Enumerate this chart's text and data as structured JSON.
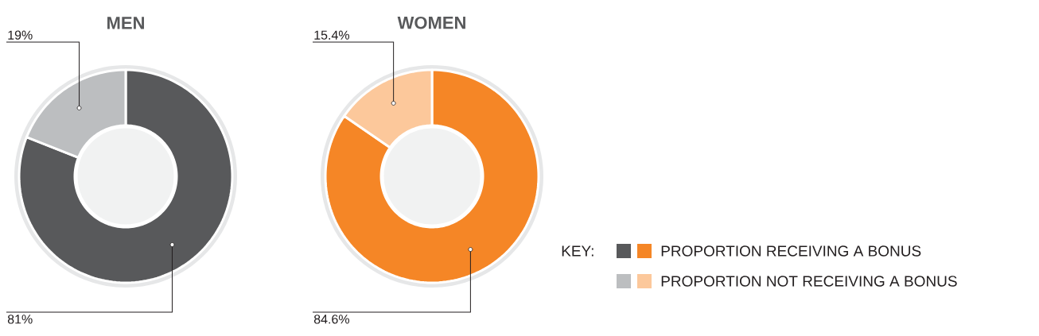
{
  "chart_data": [
    {
      "type": "donut",
      "title": "MEN",
      "legend_title": "KEY:",
      "categories": [
        "PROPORTION RECEIVING A BONUS",
        "PROPORTION NOT RECEIVING A BONUS"
      ],
      "values": [
        81,
        19
      ],
      "colors": [
        "#58595b",
        "#bcbec0"
      ],
      "value_labels": [
        "81%",
        "19%"
      ],
      "legend": "right"
    },
    {
      "type": "donut",
      "title": "WOMEN",
      "categories": [
        null,
        null
      ],
      "values": [
        84.6,
        15.4
      ],
      "colors": [
        "#f58626",
        "#fcc89b"
      ],
      "value_labels": [
        "84.6%",
        "15.4%"
      ]
    }
  ]
}
